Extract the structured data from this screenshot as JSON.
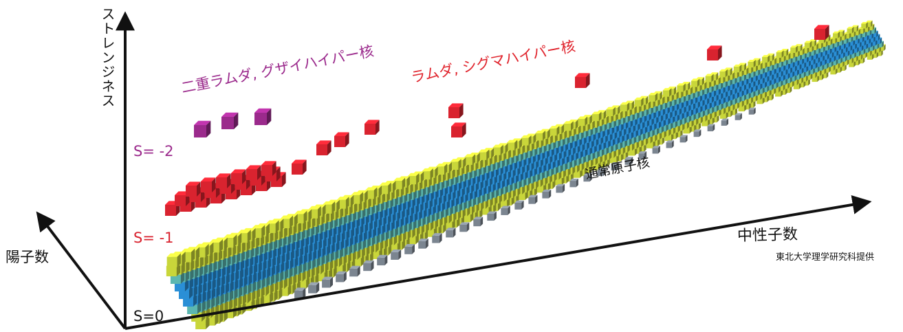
{
  "axes": {
    "strangeness": "ストレンジネス",
    "proton_number": "陽子数",
    "neutron_number": "中性子数"
  },
  "levels": {
    "s0": "S=0",
    "s1": "S= -1",
    "s2": "S= -2"
  },
  "groups": {
    "double_lambda": "二重ラムダ, グザイハイパー核",
    "lambda_sigma": "ラムダ, シグマハイパー核",
    "normal": "通常原子核"
  },
  "credit": "東北大学理学研究科提供",
  "colors": {
    "axis": "#111111",
    "normal_nuclei": "#c9d63a",
    "stable_nuclei": "#2a8fd6",
    "hypernuclei_s1": "#d9232f",
    "hypernuclei_s2": "#9b2a8c",
    "boundary_nuclei": "#7b8590"
  }
}
